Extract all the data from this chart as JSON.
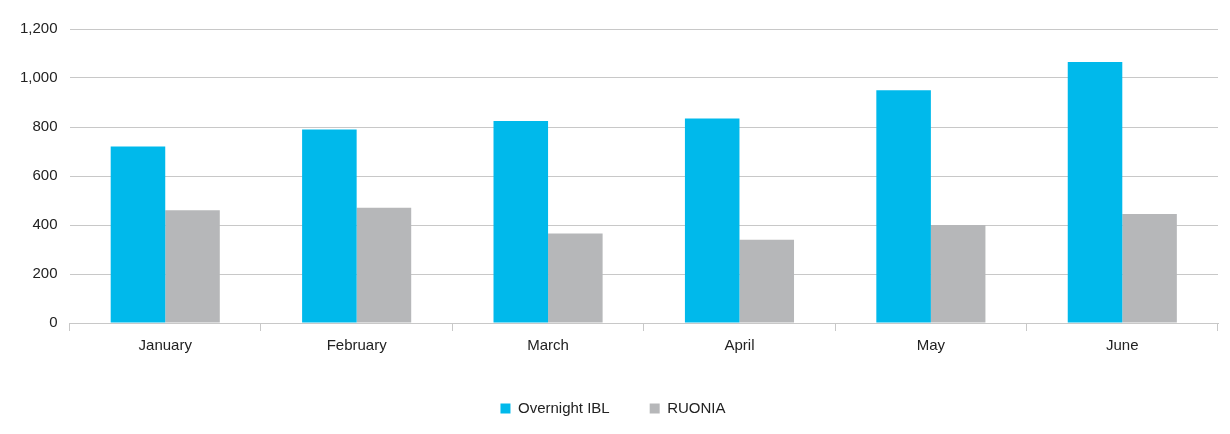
{
  "chart_data": {
    "type": "bar",
    "categories": [
      "January",
      "February",
      "March",
      "April",
      "May",
      "June"
    ],
    "series": [
      {
        "name": "Overnight IBL",
        "color": "#00b9eb",
        "values": [
          720,
          790,
          825,
          835,
          950,
          1065
        ]
      },
      {
        "name": "RUONIA",
        "color": "#b6b7b9",
        "values": [
          460,
          470,
          365,
          340,
          400,
          445
        ]
      }
    ],
    "ylim": [
      0,
      1200
    ],
    "yticks": [
      {
        "value": 0,
        "label": "0"
      },
      {
        "value": 200,
        "label": "200"
      },
      {
        "value": 400,
        "label": "400"
      },
      {
        "value": 600,
        "label": "600"
      },
      {
        "value": 800,
        "label": "800"
      },
      {
        "value": 1000,
        "label": "1,000"
      },
      {
        "value": 1200,
        "label": "1,200"
      }
    ],
    "grid": "y",
    "legend": "bottom"
  }
}
